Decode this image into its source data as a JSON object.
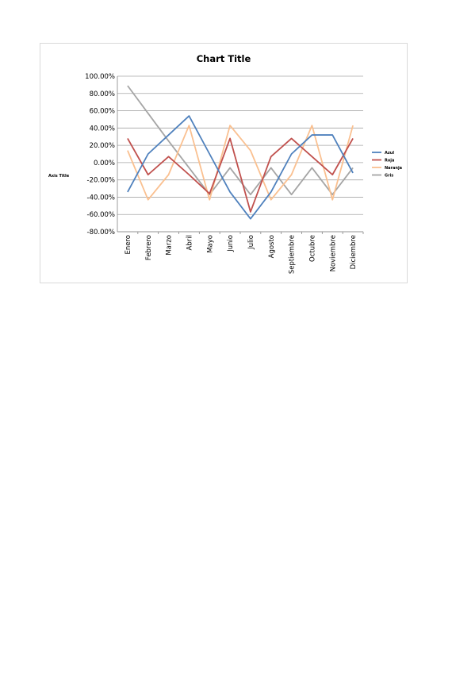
{
  "chart_data": {
    "type": "line",
    "title": "Chart Title",
    "ylabel": "Axis Title",
    "xlabel": "",
    "ylim": [
      -0.8,
      1.0
    ],
    "ytick_step": 0.2,
    "ytick_format": "percent2",
    "grid": true,
    "legend_position": "right",
    "categories": [
      "Enero",
      "Febrero",
      "Marzo",
      "Abril",
      "Mayo",
      "Junio",
      "Julio",
      "Agosto",
      "Septiembre",
      "Octubre",
      "Noviembre",
      "Diciembre"
    ],
    "series": [
      {
        "name": "Azul",
        "color": "#4f81bd",
        "values": [
          -0.34,
          0.1,
          0.32,
          0.54,
          0.1,
          -0.34,
          -0.65,
          -0.34,
          0.1,
          0.32,
          0.32,
          -0.12
        ]
      },
      {
        "name": "Roja",
        "color": "#c0504d",
        "values": [
          0.28,
          -0.14,
          0.07,
          -0.14,
          -0.36,
          0.28,
          -0.57,
          0.07,
          0.28,
          0.07,
          -0.14,
          0.28
        ]
      },
      {
        "name": "Naranja",
        "color": "#fac090",
        "values": [
          0.14,
          -0.43,
          -0.14,
          0.43,
          -0.43,
          0.43,
          0.14,
          -0.43,
          -0.14,
          0.43,
          -0.43,
          0.43
        ]
      },
      {
        "name": "Gris",
        "color": "#a5a5a5",
        "values": [
          0.89,
          0.57,
          0.25,
          -0.06,
          -0.37,
          -0.06,
          -0.37,
          -0.06,
          -0.37,
          -0.06,
          -0.37,
          -0.06
        ]
      }
    ]
  }
}
